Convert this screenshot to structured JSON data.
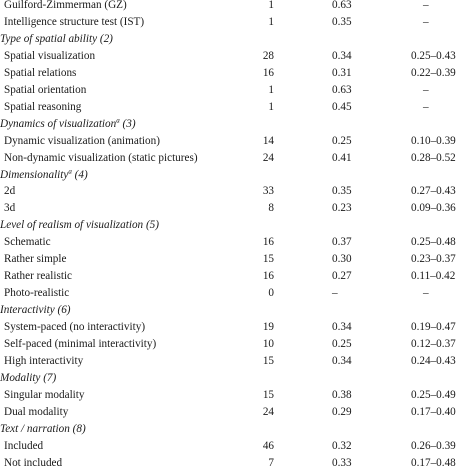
{
  "rows": [
    {
      "type": "data",
      "label": "Guilford-Zimmerman (GZ)",
      "n": "1",
      "r": "0.63",
      "ci": "–"
    },
    {
      "type": "data",
      "label": "Intelligence structure test (IST)",
      "n": "1",
      "r": "0.35",
      "ci": "–"
    },
    {
      "type": "heading",
      "label": "Type of spatial ability (2)"
    },
    {
      "type": "data",
      "label": "Spatial visualization",
      "n": "28",
      "r": "0.34",
      "ci": "0.25–0.43"
    },
    {
      "type": "data",
      "label": "Spatial relations",
      "n": "16",
      "r": "0.31",
      "ci": "0.22–0.39"
    },
    {
      "type": "data",
      "label": "Spatial orientation",
      "n": "1",
      "r": "0.63",
      "ci": "–"
    },
    {
      "type": "data",
      "label": "Spatial reasoning",
      "n": "1",
      "r": "0.45",
      "ci": "–"
    },
    {
      "type": "heading",
      "label": "Dynamics of visualization",
      "sup": "a",
      "suffix": " (3)"
    },
    {
      "type": "data",
      "label": "Dynamic visualization (animation)",
      "n": "14",
      "r": "0.25",
      "ci": "0.10–0.39"
    },
    {
      "type": "data",
      "label": "Non-dynamic visualization (static pictures)",
      "n": "24",
      "r": "0.41",
      "ci": "0.28–0.52"
    },
    {
      "type": "heading",
      "label": "Dimensionality",
      "sup": "a",
      "suffix": " (4)"
    },
    {
      "type": "data",
      "label": "2d",
      "n": "33",
      "r": "0.35",
      "ci": "0.27–0.43"
    },
    {
      "type": "data",
      "label": "3d",
      "n": "8",
      "r": "0.23",
      "ci": "0.09–0.36"
    },
    {
      "type": "heading",
      "label": "Level of realism of visualization (5)"
    },
    {
      "type": "data",
      "label": "Schematic",
      "n": "16",
      "r": "0.37",
      "ci": "0.25–0.48"
    },
    {
      "type": "data",
      "label": "Rather simple",
      "n": "15",
      "r": "0.30",
      "ci": "0.23–0.37"
    },
    {
      "type": "data",
      "label": "Rather realistic",
      "n": "16",
      "r": "0.27",
      "ci": "0.11–0.42"
    },
    {
      "type": "data",
      "label": "Photo-realistic",
      "n": "0",
      "r": "–",
      "ci": "–"
    },
    {
      "type": "heading",
      "label": "Interactivity (6)"
    },
    {
      "type": "data",
      "label": "System-paced (no interactivity)",
      "n": "19",
      "r": "0.34",
      "ci": "0.19–0.47"
    },
    {
      "type": "data",
      "label": "Self-paced (minimal interactivity)",
      "n": "10",
      "r": "0.25",
      "ci": "0.12–0.37"
    },
    {
      "type": "data",
      "label": "High interactivity",
      "n": "15",
      "r": "0.34",
      "ci": "0.24–0.43"
    },
    {
      "type": "heading",
      "label": "Modality (7)"
    },
    {
      "type": "data",
      "label": "Singular modality",
      "n": "15",
      "r": "0.38",
      "ci": "0.25–0.49"
    },
    {
      "type": "data",
      "label": "Dual modality",
      "n": "24",
      "r": "0.29",
      "ci": "0.17–0.40"
    },
    {
      "type": "heading",
      "label": "Text / narration (8)"
    },
    {
      "type": "data",
      "label": "Included",
      "n": "46",
      "r": "0.32",
      "ci": "0.26–0.39"
    },
    {
      "type": "data",
      "label": "Not included",
      "n": "7",
      "r": "0.33",
      "ci": "0.17–0.48"
    }
  ]
}
